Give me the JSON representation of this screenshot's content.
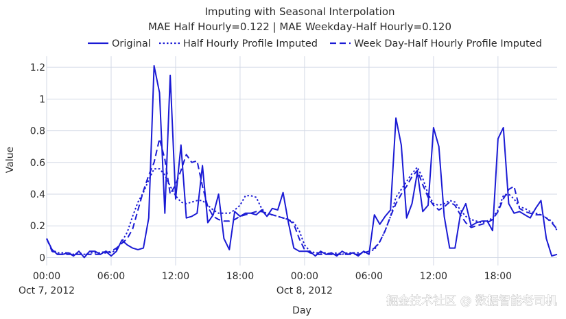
{
  "chart_data": {
    "type": "line",
    "title": "Imputing with Seasonal Interpolation",
    "subtitle": "MAE Half Hourly=0.122 | MAE Weekday-Half Hourly=0.120",
    "xlabel": "Day",
    "ylabel": "Value",
    "ylim": [
      -0.05,
      1.27
    ],
    "xlim_hours": [
      0,
      47.5
    ],
    "grid": true,
    "legend_position": "top",
    "y_ticks": [
      {
        "value": 0,
        "label": "0"
      },
      {
        "value": 0.2,
        "label": "0.2"
      },
      {
        "value": 0.4,
        "label": "0.4"
      },
      {
        "value": 0.6,
        "label": "0.6"
      },
      {
        "value": 0.8,
        "label": "0.8"
      },
      {
        "value": 1.0,
        "label": "1"
      },
      {
        "value": 1.2,
        "label": "1.2"
      }
    ],
    "x_ticks": [
      {
        "hour": 0,
        "label": "00:00",
        "sublabel": "Oct 7, 2012"
      },
      {
        "hour": 6,
        "label": "06:00",
        "sublabel": ""
      },
      {
        "hour": 12,
        "label": "12:00",
        "sublabel": ""
      },
      {
        "hour": 18,
        "label": "18:00",
        "sublabel": ""
      },
      {
        "hour": 24,
        "label": "00:00",
        "sublabel": "Oct 8, 2012"
      },
      {
        "hour": 30,
        "label": "06:00",
        "sublabel": ""
      },
      {
        "hour": 36,
        "label": "12:00",
        "sublabel": ""
      },
      {
        "hour": 42,
        "label": "18:00",
        "sublabel": ""
      }
    ],
    "series": [
      {
        "name": "Original",
        "dash": "solid",
        "points": [
          [
            0,
            0.12
          ],
          [
            0.5,
            0.05
          ],
          [
            1,
            0.02
          ],
          [
            1.5,
            0.02
          ],
          [
            2,
            0.03
          ],
          [
            2.5,
            0.01
          ],
          [
            3,
            0.04
          ],
          [
            3.5,
            0.0
          ],
          [
            4,
            0.04
          ],
          [
            4.5,
            0.04
          ],
          [
            5,
            0.02
          ],
          [
            5.5,
            0.04
          ],
          [
            6,
            0.01
          ],
          [
            6.5,
            0.04
          ],
          [
            7,
            0.11
          ],
          [
            7.5,
            0.08
          ],
          [
            8,
            0.06
          ],
          [
            8.5,
            0.05
          ],
          [
            9,
            0.06
          ],
          [
            9.5,
            0.25
          ],
          [
            10,
            1.21
          ],
          [
            10.5,
            1.04
          ],
          [
            11,
            0.28
          ],
          [
            11.5,
            1.15
          ],
          [
            12,
            0.37
          ],
          [
            12.5,
            0.71
          ],
          [
            13,
            0.25
          ],
          [
            13.5,
            0.26
          ],
          [
            14,
            0.28
          ],
          [
            14.5,
            0.58
          ],
          [
            15,
            0.22
          ],
          [
            15.5,
            0.27
          ],
          [
            16,
            0.4
          ],
          [
            16.5,
            0.12
          ],
          [
            17,
            0.05
          ],
          [
            17.5,
            0.29
          ],
          [
            18,
            0.26
          ],
          [
            18.5,
            0.28
          ],
          [
            19,
            0.28
          ],
          [
            19.5,
            0.27
          ],
          [
            20,
            0.3
          ],
          [
            20.5,
            0.26
          ],
          [
            21,
            0.31
          ],
          [
            21.5,
            0.3
          ],
          [
            22,
            0.41
          ],
          [
            22.5,
            0.22
          ],
          [
            23,
            0.06
          ],
          [
            23.5,
            0.04
          ],
          [
            24,
            0.04
          ],
          [
            24.5,
            0.04
          ],
          [
            25,
            0.01
          ],
          [
            25.5,
            0.04
          ],
          [
            26,
            0.02
          ],
          [
            26.5,
            0.03
          ],
          [
            27,
            0.01
          ],
          [
            27.5,
            0.04
          ],
          [
            28,
            0.02
          ],
          [
            28.5,
            0.03
          ],
          [
            29,
            0.01
          ],
          [
            29.5,
            0.04
          ],
          [
            30,
            0.02
          ],
          [
            30.5,
            0.27
          ],
          [
            31,
            0.21
          ],
          [
            31.5,
            0.26
          ],
          [
            32,
            0.3
          ],
          [
            32.5,
            0.88
          ],
          [
            33,
            0.71
          ],
          [
            33.5,
            0.25
          ],
          [
            34,
            0.34
          ],
          [
            34.5,
            0.54
          ],
          [
            35,
            0.29
          ],
          [
            35.5,
            0.33
          ],
          [
            36,
            0.82
          ],
          [
            36.5,
            0.7
          ],
          [
            37,
            0.26
          ],
          [
            37.5,
            0.06
          ],
          [
            38,
            0.06
          ],
          [
            38.5,
            0.27
          ],
          [
            39,
            0.34
          ],
          [
            39.5,
            0.2
          ],
          [
            40,
            0.22
          ],
          [
            40.5,
            0.23
          ],
          [
            41,
            0.23
          ],
          [
            41.5,
            0.17
          ],
          [
            42,
            0.75
          ],
          [
            42.5,
            0.82
          ],
          [
            43,
            0.34
          ],
          [
            43.5,
            0.28
          ],
          [
            44,
            0.29
          ],
          [
            44.5,
            0.27
          ],
          [
            45,
            0.25
          ],
          [
            45.5,
            0.31
          ],
          [
            46,
            0.36
          ],
          [
            46.5,
            0.12
          ],
          [
            47,
            0.01
          ],
          [
            47.5,
            0.02
          ]
        ]
      },
      {
        "name": "Half Hourly Profile Imputed",
        "dash": "dot",
        "points": [
          [
            0,
            0.12
          ],
          [
            0.5,
            0.05
          ],
          [
            1,
            0.03
          ],
          [
            1.5,
            0.03
          ],
          [
            2,
            0.03
          ],
          [
            2.5,
            0.02
          ],
          [
            3,
            0.03
          ],
          [
            3.5,
            0.02
          ],
          [
            4,
            0.03
          ],
          [
            4.5,
            0.03
          ],
          [
            5,
            0.03
          ],
          [
            5.5,
            0.04
          ],
          [
            6,
            0.03
          ],
          [
            6.5,
            0.05
          ],
          [
            7,
            0.1
          ],
          [
            7.5,
            0.16
          ],
          [
            8,
            0.26
          ],
          [
            8.5,
            0.35
          ],
          [
            9,
            0.41
          ],
          [
            9.5,
            0.49
          ],
          [
            10,
            0.56
          ],
          [
            10.5,
            0.56
          ],
          [
            11,
            0.52
          ],
          [
            11.5,
            0.45
          ],
          [
            12,
            0.39
          ],
          [
            12.5,
            0.35
          ],
          [
            13,
            0.34
          ],
          [
            13.5,
            0.35
          ],
          [
            14,
            0.36
          ],
          [
            14.5,
            0.36
          ],
          [
            15,
            0.33
          ],
          [
            15.5,
            0.3
          ],
          [
            16,
            0.28
          ],
          [
            16.5,
            0.28
          ],
          [
            17,
            0.28
          ],
          [
            17.5,
            0.3
          ],
          [
            18,
            0.33
          ],
          [
            18.5,
            0.39
          ],
          [
            19,
            0.39
          ],
          [
            19.5,
            0.38
          ],
          [
            20,
            0.31
          ],
          [
            20.5,
            0.27
          ],
          [
            21,
            0.27
          ],
          [
            21.5,
            0.26
          ],
          [
            22,
            0.25
          ],
          [
            22.5,
            0.24
          ],
          [
            23,
            0.22
          ],
          [
            23.5,
            0.17
          ],
          [
            24,
            0.08
          ],
          [
            24.5,
            0.04
          ],
          [
            25,
            0.03
          ],
          [
            25.5,
            0.03
          ],
          [
            26,
            0.03
          ],
          [
            26.5,
            0.02
          ],
          [
            27,
            0.03
          ],
          [
            27.5,
            0.02
          ],
          [
            28,
            0.03
          ],
          [
            28.5,
            0.03
          ],
          [
            29,
            0.03
          ],
          [
            29.5,
            0.03
          ],
          [
            30,
            0.04
          ],
          [
            30.5,
            0.05
          ],
          [
            31,
            0.1
          ],
          [
            31.5,
            0.17
          ],
          [
            32,
            0.26
          ],
          [
            32.5,
            0.38
          ],
          [
            33,
            0.43
          ],
          [
            33.5,
            0.48
          ],
          [
            34,
            0.53
          ],
          [
            34.5,
            0.57
          ],
          [
            35,
            0.5
          ],
          [
            35.5,
            0.4
          ],
          [
            36,
            0.34
          ],
          [
            36.5,
            0.33
          ],
          [
            37,
            0.34
          ],
          [
            37.5,
            0.36
          ],
          [
            38,
            0.35
          ],
          [
            38.5,
            0.3
          ],
          [
            39,
            0.26
          ],
          [
            39.5,
            0.24
          ],
          [
            40,
            0.23
          ],
          [
            40.5,
            0.22
          ],
          [
            41,
            0.23
          ],
          [
            41.5,
            0.25
          ],
          [
            42,
            0.3
          ],
          [
            42.5,
            0.39
          ],
          [
            43,
            0.4
          ],
          [
            43.5,
            0.37
          ],
          [
            44,
            0.32
          ],
          [
            44.5,
            0.31
          ],
          [
            45,
            0.29
          ],
          [
            45.5,
            0.28
          ],
          [
            46,
            0.27
          ],
          [
            46.5,
            0.25
          ],
          [
            47,
            0.23
          ],
          [
            47.5,
            0.17
          ]
        ]
      },
      {
        "name": "Week Day-Half Hourly Profile Imputed",
        "dash": "dash",
        "points": [
          [
            0,
            0.12
          ],
          [
            0.5,
            0.04
          ],
          [
            1,
            0.02
          ],
          [
            1.5,
            0.02
          ],
          [
            2,
            0.02
          ],
          [
            2.5,
            0.02
          ],
          [
            3,
            0.02
          ],
          [
            3.5,
            0.02
          ],
          [
            4,
            0.02
          ],
          [
            4.5,
            0.02
          ],
          [
            5,
            0.02
          ],
          [
            5.5,
            0.03
          ],
          [
            6,
            0.04
          ],
          [
            6.5,
            0.06
          ],
          [
            7,
            0.09
          ],
          [
            7.5,
            0.12
          ],
          [
            8,
            0.18
          ],
          [
            8.5,
            0.3
          ],
          [
            9,
            0.42
          ],
          [
            9.5,
            0.52
          ],
          [
            10,
            0.6
          ],
          [
            10.5,
            0.75
          ],
          [
            11,
            0.62
          ],
          [
            11.5,
            0.4
          ],
          [
            12,
            0.46
          ],
          [
            12.5,
            0.55
          ],
          [
            13,
            0.65
          ],
          [
            13.5,
            0.6
          ],
          [
            14,
            0.61
          ],
          [
            14.5,
            0.45
          ],
          [
            15,
            0.32
          ],
          [
            15.5,
            0.26
          ],
          [
            16,
            0.24
          ],
          [
            16.5,
            0.23
          ],
          [
            17,
            0.23
          ],
          [
            17.5,
            0.24
          ],
          [
            18,
            0.26
          ],
          [
            18.5,
            0.27
          ],
          [
            19,
            0.28
          ],
          [
            19.5,
            0.29
          ],
          [
            20,
            0.29
          ],
          [
            20.5,
            0.28
          ],
          [
            21,
            0.27
          ],
          [
            21.5,
            0.26
          ],
          [
            22,
            0.25
          ],
          [
            22.5,
            0.24
          ],
          [
            23,
            0.21
          ],
          [
            23.5,
            0.12
          ],
          [
            24,
            0.05
          ],
          [
            24.5,
            0.03
          ],
          [
            25,
            0.02
          ],
          [
            25.5,
            0.02
          ],
          [
            26,
            0.02
          ],
          [
            26.5,
            0.02
          ],
          [
            27,
            0.02
          ],
          [
            27.5,
            0.02
          ],
          [
            28,
            0.02
          ],
          [
            28.5,
            0.02
          ],
          [
            29,
            0.02
          ],
          [
            29.5,
            0.03
          ],
          [
            30,
            0.04
          ],
          [
            30.5,
            0.06
          ],
          [
            31,
            0.1
          ],
          [
            31.5,
            0.17
          ],
          [
            32,
            0.26
          ],
          [
            32.5,
            0.34
          ],
          [
            33,
            0.4
          ],
          [
            33.5,
            0.45
          ],
          [
            34,
            0.51
          ],
          [
            34.5,
            0.55
          ],
          [
            35,
            0.46
          ],
          [
            35.5,
            0.38
          ],
          [
            36,
            0.33
          ],
          [
            36.5,
            0.3
          ],
          [
            37,
            0.32
          ],
          [
            37.5,
            0.35
          ],
          [
            38,
            0.33
          ],
          [
            38.5,
            0.27
          ],
          [
            39,
            0.22
          ],
          [
            39.5,
            0.19
          ],
          [
            40,
            0.2
          ],
          [
            40.5,
            0.21
          ],
          [
            41,
            0.22
          ],
          [
            41.5,
            0.24
          ],
          [
            42,
            0.29
          ],
          [
            42.5,
            0.37
          ],
          [
            43,
            0.43
          ],
          [
            43.5,
            0.45
          ],
          [
            44,
            0.31
          ],
          [
            44.5,
            0.29
          ],
          [
            45,
            0.28
          ],
          [
            45.5,
            0.27
          ],
          [
            46,
            0.27
          ],
          [
            46.5,
            0.25
          ],
          [
            47,
            0.22
          ],
          [
            47.5,
            0.18
          ]
        ]
      }
    ]
  },
  "colors": {
    "line": "#1a1ad4",
    "grid": "#d3d9e6",
    "text": "#2a2a2a"
  },
  "watermark": "掘金技术社区 @ 数据智能老司机"
}
